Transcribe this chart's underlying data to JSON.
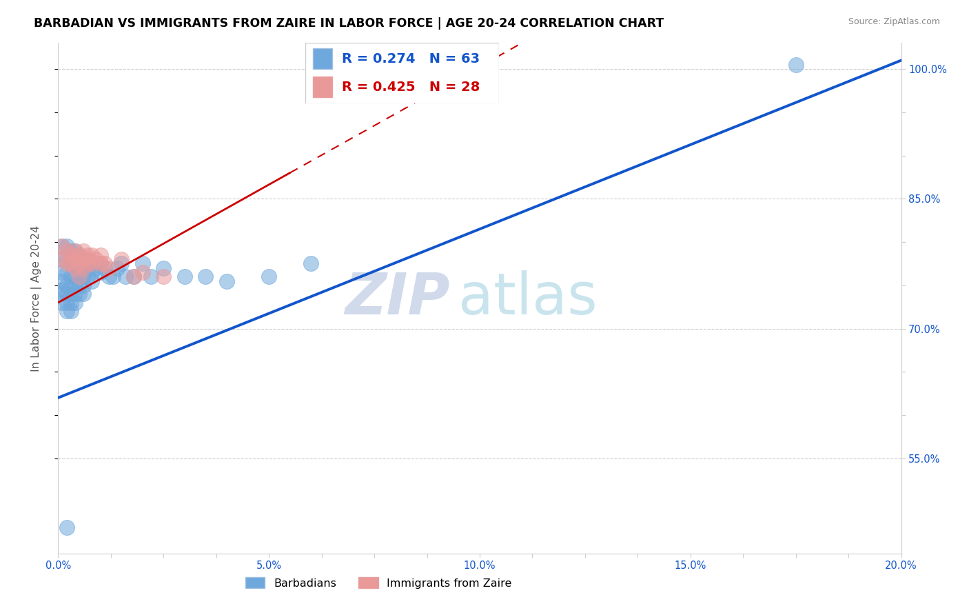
{
  "title": "BARBADIAN VS IMMIGRANTS FROM ZAIRE IN LABOR FORCE | AGE 20-24 CORRELATION CHART",
  "source": "Source: ZipAtlas.com",
  "ylabel": "In Labor Force | Age 20-24",
  "xlim": [
    0.0,
    0.2
  ],
  "ylim": [
    0.44,
    1.03
  ],
  "blue_color": "#6fa8dc",
  "pink_color": "#ea9999",
  "blue_line_color": "#1155cc",
  "pink_line_color": "#cc0000",
  "legend_r_blue": "R = 0.274",
  "legend_n_blue": "N = 63",
  "legend_r_pink": "R = 0.425",
  "legend_n_pink": "N = 28",
  "legend_label_blue": "Barbadians",
  "legend_label_pink": "Immigrants from Zaire",
  "blue_line_x0": 0.0,
  "blue_line_y0": 0.62,
  "blue_line_x1": 0.2,
  "blue_line_y1": 1.01,
  "pink_line_x0": 0.0,
  "pink_line_y0": 0.73,
  "pink_line_x1": 0.055,
  "pink_line_y1": 0.88,
  "pink_line_dashed_x0": 0.055,
  "pink_line_dashed_y0": 0.88,
  "pink_line_dashed_x1": 0.0,
  "pink_line_dashed_y1": 0.73,
  "blue_x": [
    0.001,
    0.001,
    0.001,
    0.001,
    0.001,
    0.001,
    0.001,
    0.002,
    0.002,
    0.002,
    0.002,
    0.002,
    0.002,
    0.002,
    0.003,
    0.003,
    0.003,
    0.003,
    0.003,
    0.003,
    0.003,
    0.004,
    0.004,
    0.004,
    0.004,
    0.004,
    0.004,
    0.005,
    0.005,
    0.005,
    0.005,
    0.005,
    0.006,
    0.006,
    0.006,
    0.006,
    0.006,
    0.007,
    0.007,
    0.007,
    0.008,
    0.008,
    0.008,
    0.009,
    0.01,
    0.01,
    0.011,
    0.012,
    0.013,
    0.014,
    0.015,
    0.016,
    0.018,
    0.02,
    0.022,
    0.025,
    0.03,
    0.035,
    0.04,
    0.05,
    0.06,
    0.175,
    0.002
  ],
  "blue_y": [
    0.795,
    0.78,
    0.765,
    0.755,
    0.745,
    0.74,
    0.73,
    0.795,
    0.78,
    0.765,
    0.75,
    0.74,
    0.73,
    0.72,
    0.79,
    0.775,
    0.76,
    0.75,
    0.74,
    0.73,
    0.72,
    0.79,
    0.775,
    0.76,
    0.75,
    0.74,
    0.73,
    0.785,
    0.77,
    0.76,
    0.75,
    0.74,
    0.78,
    0.77,
    0.76,
    0.75,
    0.74,
    0.78,
    0.77,
    0.76,
    0.775,
    0.765,
    0.755,
    0.77,
    0.775,
    0.765,
    0.77,
    0.76,
    0.76,
    0.77,
    0.775,
    0.76,
    0.76,
    0.775,
    0.76,
    0.77,
    0.76,
    0.76,
    0.755,
    0.76,
    0.775,
    1.005,
    0.47
  ],
  "pink_x": [
    0.001,
    0.001,
    0.002,
    0.002,
    0.003,
    0.003,
    0.004,
    0.004,
    0.004,
    0.005,
    0.005,
    0.005,
    0.006,
    0.006,
    0.006,
    0.007,
    0.007,
    0.008,
    0.008,
    0.009,
    0.01,
    0.01,
    0.011,
    0.012,
    0.015,
    0.018,
    0.02,
    0.025
  ],
  "pink_y": [
    0.795,
    0.78,
    0.79,
    0.775,
    0.785,
    0.775,
    0.79,
    0.78,
    0.77,
    0.785,
    0.775,
    0.76,
    0.79,
    0.78,
    0.77,
    0.785,
    0.775,
    0.785,
    0.775,
    0.78,
    0.785,
    0.775,
    0.775,
    0.77,
    0.78,
    0.76,
    0.765,
    0.76
  ]
}
